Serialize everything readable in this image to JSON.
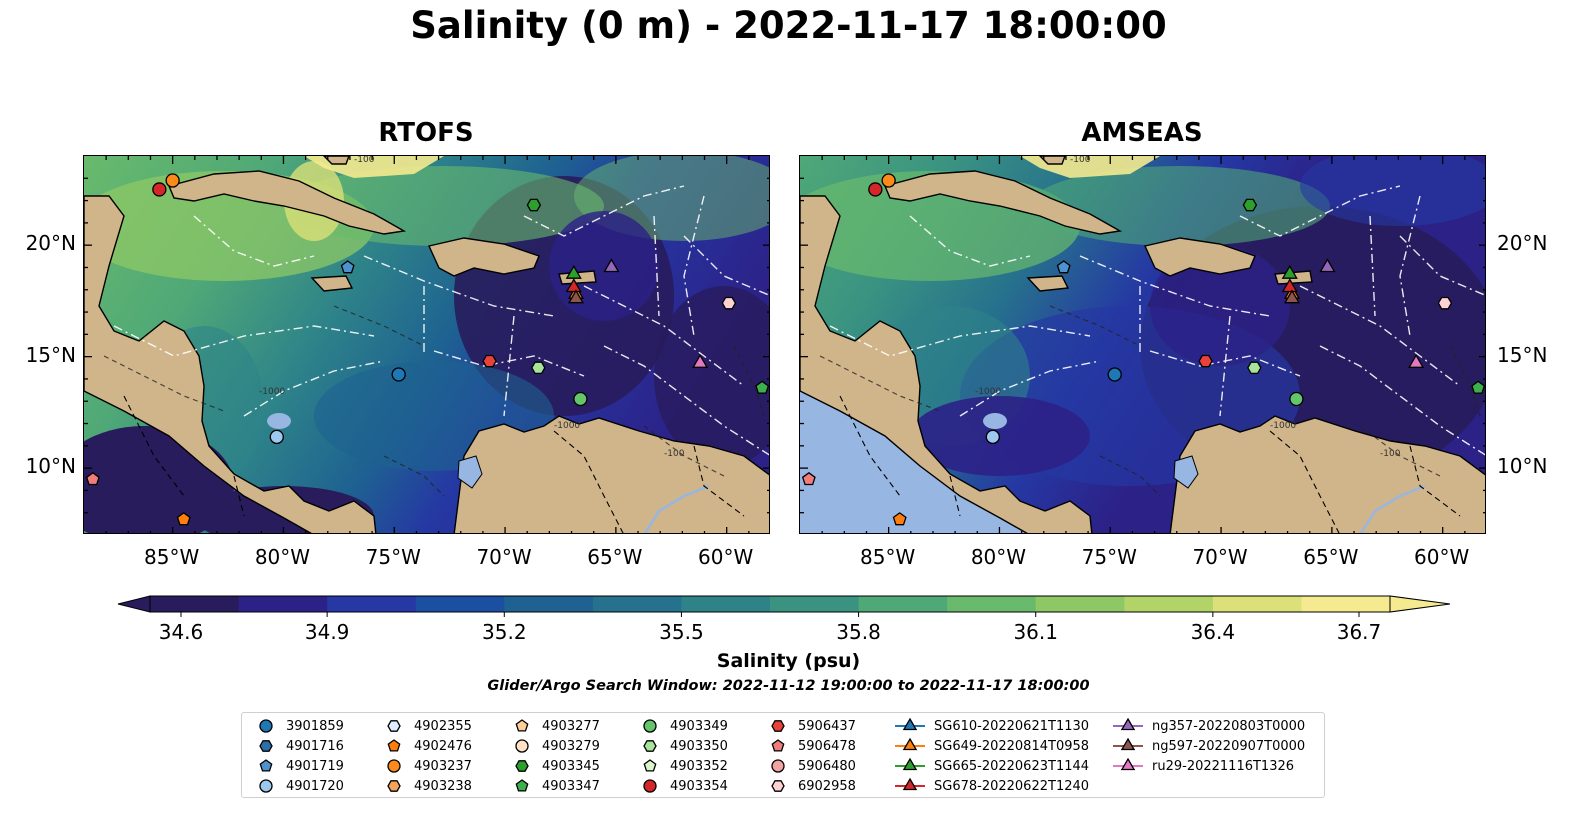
{
  "title": "Salinity (0 m) - 2022-11-17 18:00:00",
  "panels": [
    {
      "title": "RTOFS"
    },
    {
      "title": "AMSEAS"
    }
  ],
  "axes": {
    "lon_labels": [
      "85°W",
      "80°W",
      "75°W",
      "70°W",
      "65°W",
      "60°W"
    ],
    "lon_values": [
      -85,
      -80,
      -75,
      -70,
      -65,
      -60
    ],
    "lat_labels": [
      "20°N",
      "15°N",
      "10°N"
    ],
    "lat_values": [
      20,
      15,
      10
    ],
    "lon_range": [
      -89,
      -58
    ],
    "lat_range": [
      7,
      24
    ]
  },
  "contour_labels": [
    "-100",
    "-1000",
    "-1000",
    "-100"
  ],
  "colorbar": {
    "label": "Salinity (psu)",
    "ticks": [
      "34.6",
      "34.9",
      "35.2",
      "35.5",
      "35.8",
      "36.1",
      "36.4",
      "36.7"
    ],
    "range": [
      34.6,
      36.7
    ],
    "colors": [
      "#281c5c",
      "#2c2187",
      "#2538a3",
      "#1b4fa2",
      "#1e6291",
      "#26718d",
      "#2e8389",
      "#3a9381",
      "#4fa877",
      "#69ba6c",
      "#8dc865",
      "#b2d367",
      "#dbe078",
      "#f5ea8f"
    ]
  },
  "land_color": "#d0b48a",
  "lake_color": "#97b6e1",
  "search_window": "Glider/Argo Search Window: 2022-11-12 19:00:00 to 2022-11-17 18:00:00",
  "stations": [
    {
      "id": "3901859",
      "marker": "circle",
      "color": "#1f77b4",
      "lon": -74.8,
      "lat": 14.2
    },
    {
      "id": "4901716",
      "marker": "hexagon",
      "color": "#2c6ea7",
      "lon": null,
      "lat": null
    },
    {
      "id": "4901719",
      "marker": "pentagon",
      "color": "#4f92cf",
      "lon": -77.1,
      "lat": 19.0
    },
    {
      "id": "4901720",
      "marker": "circle",
      "color": "#9ec8ee",
      "lon": -80.3,
      "lat": 11.4
    },
    {
      "id": "4902355",
      "marker": "hexagon",
      "color": "#ddeeff",
      "lon": null,
      "lat": null
    },
    {
      "id": "4902476",
      "marker": "pentagon",
      "color": "#ff7f0e",
      "lon": -84.5,
      "lat": 7.7
    },
    {
      "id": "4903237",
      "marker": "circle",
      "color": "#ff8a1c",
      "lon": -85.0,
      "lat": 22.9
    },
    {
      "id": "4903238",
      "marker": "hexagon",
      "color": "#f7a35c",
      "lon": null,
      "lat": null
    },
    {
      "id": "4903277",
      "marker": "pentagon",
      "color": "#ffcf99",
      "lon": null,
      "lat": null
    },
    {
      "id": "4903279",
      "marker": "circle",
      "color": "#ffe2c4",
      "lon": null,
      "lat": null
    },
    {
      "id": "4903345",
      "marker": "hexagon",
      "color": "#2ca02c",
      "lon": -68.7,
      "lat": 21.8
    },
    {
      "id": "4903347",
      "marker": "pentagon",
      "color": "#3cb04c",
      "lon": -58.4,
      "lat": 13.6
    },
    {
      "id": "4903349",
      "marker": "circle",
      "color": "#64c56b",
      "lon": -66.6,
      "lat": 13.1
    },
    {
      "id": "4903350",
      "marker": "hexagon",
      "color": "#a7e39a",
      "lon": -68.5,
      "lat": 14.5
    },
    {
      "id": "4903352",
      "marker": "pentagon",
      "color": "#d9f5cc",
      "lon": null,
      "lat": null
    },
    {
      "id": "4903354",
      "marker": "circle",
      "color": "#d62728",
      "lon": -85.6,
      "lat": 22.5
    },
    {
      "id": "5906437",
      "marker": "hexagon",
      "color": "#e8423a",
      "lon": -70.7,
      "lat": 14.8
    },
    {
      "id": "5906478",
      "marker": "pentagon",
      "color": "#f07c7c",
      "lon": -88.6,
      "lat": 9.5
    },
    {
      "id": "5906480",
      "marker": "circle",
      "color": "#f4a3a3",
      "lon": null,
      "lat": null
    },
    {
      "id": "6902958",
      "marker": "hexagon",
      "color": "#fdd2d2",
      "lon": -59.9,
      "lat": 17.4
    }
  ],
  "gliders": [
    {
      "id": "SG610-20220621T1130",
      "color": "#1f77b4",
      "lon": null,
      "lat": null
    },
    {
      "id": "SG649-20220814T0958",
      "color": "#ff7f0e",
      "lon": -66.8,
      "lat": 17.8
    },
    {
      "id": "SG665-20220623T1144",
      "color": "#2ca02c",
      "lon": -66.9,
      "lat": 18.7
    },
    {
      "id": "SG678-20220622T1240",
      "color": "#d62728",
      "lon": -66.9,
      "lat": 18.1
    },
    {
      "id": "ng357-20220803T0000",
      "color": "#9467bd",
      "lon": -65.2,
      "lat": 19.0
    },
    {
      "id": "ng597-20220907T0000",
      "color": "#8c564b",
      "lon": -66.8,
      "lat": 17.6
    },
    {
      "id": "ru29-20221116T1326",
      "color": "#e377c2",
      "lon": -61.2,
      "lat": 14.7
    }
  ]
}
